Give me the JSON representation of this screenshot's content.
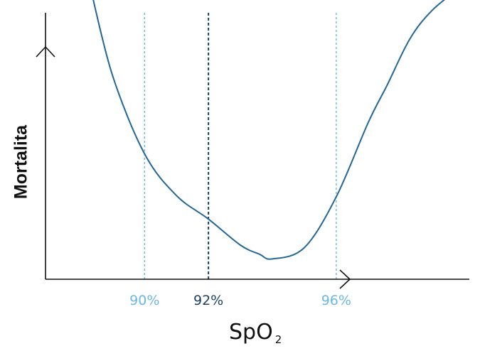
{
  "chart_data": {
    "type": "line",
    "title": "",
    "xlabel": "SpO",
    "xlabel_subscript": "2",
    "ylabel": "Mortalita",
    "xlim": [
      86.9,
      100.5
    ],
    "ylim": [
      0,
      10
    ],
    "grid": false,
    "legend": "none",
    "reference_lines": [
      {
        "x": 90,
        "label": "90%",
        "color": "#6cb8e3",
        "style": "dotted"
      },
      {
        "x": 92,
        "label": "92%",
        "color": "#1d3f63",
        "style": "dotted"
      },
      {
        "x": 96,
        "label": "96%",
        "color": "#6cb8e3",
        "style": "dotted"
      }
    ],
    "series": [
      {
        "color": "#236697",
        "x": [
          88.3,
          89.0,
          90.0,
          91.0,
          92.0,
          93.0,
          93.6,
          94.0,
          95.0,
          96.0,
          97.0,
          97.6,
          98.3,
          99.0,
          99.9
        ],
        "y": [
          10.5,
          7.1,
          4.1,
          2.5,
          1.6,
          0.6,
          0.25,
          0.07,
          0.5,
          2.45,
          5.3,
          6.75,
          8.5,
          9.6,
          10.5
        ]
      }
    ]
  }
}
